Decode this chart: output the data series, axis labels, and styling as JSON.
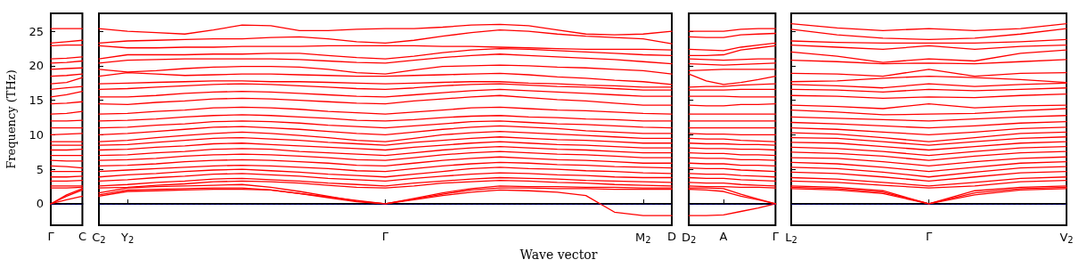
{
  "chart_data": [
    {
      "type": "line",
      "ylabel": "Frequency (THz)",
      "categories": [
        "Γ",
        null,
        "C"
      ],
      "ylim": [
        -3.1,
        27.6
      ],
      "yticks": [
        0,
        5,
        10,
        15,
        20,
        25
      ],
      "marker": "none",
      "grid": false,
      "ref_lines": [
        {
          "axis": "y",
          "value": 0,
          "color": "#0000ff",
          "line_style": "dotted"
        }
      ],
      "series": [
        {
          "color": "#ff0000",
          "values": [
            0,
            0.6,
            1.1
          ]
        },
        {
          "color": "#ff0000",
          "values": [
            0,
            1.1,
            2.0
          ]
        },
        {
          "color": "#ff0000",
          "values": [
            0,
            1.3,
            2.2
          ]
        },
        {
          "color": "#ff0000",
          "values": [
            2.3,
            2.3,
            2.4
          ]
        },
        {
          "color": "#ff0000",
          "values": [
            2.6,
            2.6,
            2.6
          ]
        },
        {
          "color": "#ff0000",
          "values": [
            3.3,
            3.3,
            3.4
          ]
        },
        {
          "color": "#ff0000",
          "values": [
            3.9,
            3.9,
            4.0
          ]
        },
        {
          "color": "#ff0000",
          "values": [
            4.7,
            4.7,
            4.7
          ]
        },
        {
          "color": "#ff0000",
          "values": [
            5.5,
            5.4,
            5.2
          ]
        },
        {
          "color": "#ff0000",
          "values": [
            6.3,
            6.2,
            6.2
          ]
        },
        {
          "color": "#ff0000",
          "values": [
            7.0,
            7.0,
            7.0
          ]
        },
        {
          "color": "#ff0000",
          "values": [
            7.8,
            7.8,
            7.9
          ]
        },
        {
          "color": "#ff0000",
          "values": [
            8.5,
            8.5,
            8.5
          ]
        },
        {
          "color": "#ff0000",
          "values": [
            9.0,
            9.0,
            9.0
          ]
        },
        {
          "color": "#ff0000",
          "values": [
            10.0,
            10.1,
            10.2
          ]
        },
        {
          "color": "#ff0000",
          "values": [
            11.0,
            11.0,
            11.0
          ]
        },
        {
          "color": "#ff0000",
          "values": [
            12.0,
            12.0,
            12.1
          ]
        },
        {
          "color": "#ff0000",
          "values": [
            13.0,
            13.1,
            13.4
          ]
        },
        {
          "color": "#ff0000",
          "values": [
            14.5,
            14.6,
            14.8
          ]
        },
        {
          "color": "#ff0000",
          "values": [
            15.5,
            15.8,
            16.3
          ]
        },
        {
          "color": "#ff0000",
          "values": [
            16.6,
            16.8,
            17.0
          ]
        },
        {
          "color": "#ff0000",
          "values": [
            17.4,
            17.6,
            18.3
          ]
        },
        {
          "color": "#ff0000",
          "values": [
            18.5,
            18.6,
            18.8
          ]
        },
        {
          "color": "#ff0000",
          "values": [
            19.5,
            19.6,
            19.7
          ]
        },
        {
          "color": "#ff0000",
          "values": [
            20.4,
            20.5,
            20.7
          ]
        },
        {
          "color": "#ff0000",
          "values": [
            21.0,
            21.1,
            21.3
          ]
        },
        {
          "color": "#ff0000",
          "values": [
            22.9,
            23.0,
            23.0
          ]
        },
        {
          "color": "#ff0000",
          "values": [
            23.3,
            23.5,
            23.7
          ]
        },
        {
          "color": "#ff0000",
          "values": [
            25.4,
            25.4,
            25.4
          ]
        }
      ]
    },
    {
      "type": "line",
      "xlabel": "Wave vector",
      "categories": [
        "C$_{2}$",
        "Y$_{2}$",
        null,
        null,
        null,
        null,
        null,
        null,
        null,
        null,
        "Γ",
        null,
        null,
        null,
        null,
        null,
        null,
        null,
        null,
        "M$_{2}$",
        "D"
      ],
      "ylim": [
        -3.1,
        27.6
      ],
      "yticks": [
        0,
        5,
        10,
        15,
        20,
        25
      ],
      "tick_labels": "x",
      "marker": "none",
      "grid": false,
      "ref_lines": [
        {
          "axis": "y",
          "value": 0,
          "color": "#0000ff",
          "line_style": "dotted"
        }
      ],
      "series": [
        {
          "color": "#ff0000",
          "values": [
            1.1,
            1.8,
            1.9,
            2.0,
            2.1,
            2.1,
            2.0,
            1.5,
            1.0,
            0.5,
            0,
            0.6,
            1.2,
            1.7,
            2.0,
            1.9,
            1.7,
            1.2,
            -1.2,
            -1.7,
            -1.7
          ]
        },
        {
          "color": "#ff0000",
          "values": [
            1.3,
            2.0,
            2.1,
            2.2,
            2.3,
            2.3,
            2.0,
            1.5,
            0.9,
            0.3,
            0,
            0.7,
            1.4,
            2.0,
            2.3,
            2.3,
            2.2,
            2.2,
            2.1,
            2.1,
            2.1
          ]
        },
        {
          "color": "#ff0000",
          "values": [
            1.6,
            2.3,
            2.5,
            2.6,
            2.7,
            2.8,
            2.4,
            1.8,
            1.1,
            0.4,
            0,
            0.8,
            1.6,
            2.2,
            2.6,
            2.5,
            2.5,
            2.4,
            2.4,
            2.3,
            2.3
          ]
        },
        {
          "color": "#ff0000",
          "values": [
            2.3,
            2.4,
            2.7,
            2.9,
            3.2,
            3.3,
            3.2,
            3.0,
            2.7,
            2.4,
            2.3,
            2.6,
            3.0,
            3.2,
            3.4,
            3.3,
            3.1,
            3.0,
            2.8,
            2.7,
            2.6
          ]
        },
        {
          "color": "#ff0000",
          "values": [
            2.6,
            2.8,
            3.1,
            3.3,
            3.6,
            3.7,
            3.5,
            3.3,
            3.0,
            2.8,
            2.6,
            3.0,
            3.3,
            3.6,
            3.8,
            3.7,
            3.6,
            3.4,
            3.3,
            3.2,
            3.1
          ]
        },
        {
          "color": "#ff0000",
          "values": [
            3.3,
            3.5,
            3.8,
            4.0,
            4.3,
            4.4,
            4.2,
            4.0,
            3.7,
            3.5,
            3.3,
            3.7,
            4.0,
            4.3,
            4.5,
            4.4,
            4.2,
            4.1,
            3.9,
            3.8,
            3.8
          ]
        },
        {
          "color": "#ff0000",
          "values": [
            3.9,
            4.2,
            4.4,
            4.7,
            4.9,
            5.0,
            4.8,
            4.6,
            4.3,
            4.1,
            3.9,
            4.3,
            4.7,
            5.1,
            5.3,
            5.1,
            5.0,
            4.8,
            4.7,
            4.5,
            4.4
          ]
        },
        {
          "color": "#ff0000",
          "values": [
            4.7,
            4.9,
            5.1,
            5.3,
            5.5,
            5.6,
            5.5,
            5.3,
            5.1,
            4.8,
            4.7,
            5.1,
            5.5,
            5.8,
            6.0,
            5.9,
            5.7,
            5.6,
            5.4,
            5.3,
            5.2
          ]
        },
        {
          "color": "#ff0000",
          "values": [
            5.5,
            5.6,
            5.8,
            6.1,
            6.3,
            6.4,
            6.3,
            6.1,
            5.9,
            5.6,
            5.5,
            5.9,
            6.3,
            6.6,
            6.8,
            6.6,
            6.4,
            6.3,
            6.1,
            5.9,
            5.9
          ]
        },
        {
          "color": "#ff0000",
          "values": [
            6.3,
            6.4,
            6.6,
            6.9,
            7.1,
            7.2,
            7.1,
            6.9,
            6.7,
            6.4,
            6.3,
            6.7,
            7.1,
            7.4,
            7.6,
            7.4,
            7.2,
            7.1,
            6.9,
            6.7,
            6.7
          ]
        },
        {
          "color": "#ff0000",
          "values": [
            7.0,
            7.1,
            7.4,
            7.6,
            7.9,
            8.0,
            7.9,
            7.6,
            7.4,
            7.2,
            7.0,
            7.4,
            7.8,
            8.1,
            8.3,
            8.1,
            7.9,
            7.8,
            7.6,
            7.4,
            7.4
          ]
        },
        {
          "color": "#ff0000",
          "values": [
            7.8,
            7.9,
            8.2,
            8.4,
            8.7,
            8.8,
            8.6,
            8.4,
            8.2,
            8.0,
            7.8,
            8.2,
            8.5,
            8.8,
            9.0,
            8.8,
            8.6,
            8.5,
            8.3,
            8.1,
            8.1
          ]
        },
        {
          "color": "#ff0000",
          "values": [
            8.5,
            8.6,
            8.9,
            9.2,
            9.5,
            9.6,
            9.4,
            9.2,
            8.9,
            8.7,
            8.5,
            8.9,
            9.2,
            9.5,
            9.7,
            9.5,
            9.3,
            9.2,
            9.0,
            8.8,
            8.8
          ]
        },
        {
          "color": "#ff0000",
          "values": [
            9.0,
            9.2,
            9.6,
            9.9,
            10.2,
            10.4,
            10.2,
            9.9,
            9.6,
            9.2,
            9.0,
            9.5,
            10.0,
            10.3,
            10.5,
            10.3,
            10.1,
            9.9,
            9.7,
            9.5,
            9.5
          ]
        },
        {
          "color": "#ff0000",
          "values": [
            10.0,
            10.2,
            10.5,
            10.8,
            11.1,
            11.2,
            11.0,
            10.8,
            10.5,
            10.2,
            10.0,
            10.4,
            10.8,
            11.1,
            11.3,
            11.1,
            10.9,
            10.6,
            10.4,
            10.2,
            10.2
          ]
        },
        {
          "color": "#ff0000",
          "values": [
            11.0,
            11.1,
            11.4,
            11.6,
            11.9,
            12.0,
            11.9,
            11.7,
            11.4,
            11.2,
            11.0,
            11.3,
            11.6,
            11.9,
            12.0,
            11.8,
            11.6,
            11.5,
            11.3,
            11.1,
            11.0
          ]
        },
        {
          "color": "#ff0000",
          "values": [
            12.0,
            12.1,
            12.3,
            12.6,
            12.8,
            12.9,
            12.8,
            12.6,
            12.4,
            12.1,
            12.0,
            12.2,
            12.5,
            12.7,
            12.8,
            12.6,
            12.5,
            12.3,
            12.2,
            12.0,
            12.0
          ]
        },
        {
          "color": "#ff0000",
          "values": [
            13.0,
            13.1,
            13.4,
            13.6,
            13.9,
            14.0,
            13.9,
            13.7,
            13.4,
            13.2,
            13.0,
            13.3,
            13.6,
            13.9,
            14.0,
            13.8,
            13.6,
            13.5,
            13.3,
            13.1,
            13.0
          ]
        },
        {
          "color": "#ff0000",
          "values": [
            14.5,
            14.4,
            14.7,
            14.9,
            15.2,
            15.3,
            15.2,
            15.0,
            14.8,
            14.6,
            14.5,
            14.9,
            15.2,
            15.5,
            15.7,
            15.4,
            15.1,
            14.9,
            14.6,
            14.3,
            14.3
          ]
        },
        {
          "color": "#ff0000",
          "values": [
            15.5,
            15.5,
            15.7,
            16.0,
            16.2,
            16.3,
            16.2,
            16.0,
            15.8,
            15.6,
            15.5,
            15.8,
            16.1,
            16.4,
            16.6,
            16.4,
            16.2,
            16.0,
            15.8,
            15.6,
            15.6
          ]
        },
        {
          "color": "#ff0000",
          "values": [
            16.6,
            16.7,
            16.9,
            17.1,
            17.3,
            17.4,
            17.3,
            17.1,
            16.9,
            16.7,
            16.6,
            16.8,
            17.1,
            17.3,
            17.4,
            17.2,
            17.0,
            16.9,
            16.7,
            16.5,
            16.5
          ]
        },
        {
          "color": "#ff0000",
          "values": [
            17.4,
            17.5,
            17.6,
            17.7,
            17.8,
            17.8,
            17.7,
            17.7,
            17.6,
            17.5,
            17.4,
            17.5,
            17.6,
            17.7,
            17.7,
            17.5,
            17.4,
            17.2,
            17.1,
            16.9,
            16.9
          ]
        },
        {
          "color": "#ff0000",
          "values": [
            18.5,
            19.0,
            18.8,
            18.6,
            18.7,
            18.8,
            18.8,
            18.7,
            18.6,
            18.5,
            18.5,
            18.6,
            18.7,
            18.8,
            18.9,
            18.7,
            18.4,
            18.2,
            17.9,
            17.7,
            17.3
          ]
        },
        {
          "color": "#ff0000",
          "values": [
            19.5,
            19.1,
            19.3,
            19.6,
            19.8,
            19.9,
            19.9,
            19.8,
            19.5,
            19.0,
            18.8,
            19.4,
            19.9,
            20.0,
            20.1,
            20.0,
            19.8,
            19.7,
            19.5,
            19.3,
            18.8
          ]
        },
        {
          "color": "#ff0000",
          "values": [
            20.4,
            20.8,
            20.9,
            21.0,
            21.0,
            21.0,
            21.0,
            20.9,
            20.7,
            20.5,
            20.4,
            20.8,
            21.2,
            21.5,
            21.7,
            21.5,
            21.3,
            21.1,
            20.9,
            20.6,
            20.3
          ]
        },
        {
          "color": "#ff0000",
          "values": [
            21.0,
            21.6,
            21.6,
            21.6,
            21.7,
            21.7,
            21.8,
            21.8,
            21.5,
            21.2,
            21.0,
            21.4,
            21.9,
            22.3,
            22.5,
            22.4,
            22.2,
            22.0,
            21.8,
            21.6,
            21.5
          ]
        },
        {
          "color": "#ff0000",
          "values": [
            22.9,
            22.6,
            22.6,
            22.7,
            22.7,
            22.8,
            22.8,
            22.8,
            22.9,
            22.9,
            22.9,
            22.9,
            22.8,
            22.8,
            22.7,
            22.6,
            22.5,
            22.4,
            22.4,
            22.4,
            22.3
          ]
        },
        {
          "color": "#ff0000",
          "values": [
            23.3,
            23.6,
            23.7,
            23.8,
            23.9,
            23.9,
            24.1,
            24.2,
            23.9,
            23.5,
            23.3,
            23.7,
            24.3,
            24.8,
            25.2,
            25.0,
            24.6,
            24.3,
            24.1,
            23.9,
            23.2
          ]
        },
        {
          "color": "#ff0000",
          "values": [
            25.4,
            25.0,
            24.8,
            24.6,
            25.2,
            25.9,
            25.8,
            25.1,
            25.1,
            25.3,
            25.4,
            25.4,
            25.6,
            25.9,
            26.0,
            25.8,
            25.2,
            24.6,
            24.5,
            24.6,
            25.0
          ]
        }
      ]
    },
    {
      "type": "line",
      "categories": [
        "D$_{2}$",
        null,
        "A",
        null,
        null,
        "Γ"
      ],
      "ylim": [
        -3.1,
        27.6
      ],
      "yticks": [
        0,
        5,
        10,
        15,
        20,
        25
      ],
      "tick_labels": "x",
      "marker": "none",
      "grid": false,
      "ref_lines": [
        {
          "axis": "y",
          "value": 0,
          "color": "#0000ff",
          "line_style": "dotted"
        }
      ],
      "series": [
        {
          "color": "#ff0000",
          "values": [
            -1.7,
            -1.7,
            -1.6,
            -1.1,
            -0.6,
            0
          ]
        },
        {
          "color": "#ff0000",
          "values": [
            2.1,
            2.0,
            1.8,
            1.1,
            0.6,
            0
          ]
        },
        {
          "color": "#ff0000",
          "values": [
            2.3,
            2.3,
            2.2,
            1.4,
            0.7,
            0
          ]
        },
        {
          "color": "#ff0000",
          "values": [
            2.6,
            2.5,
            2.5,
            2.4,
            2.4,
            2.3
          ]
        },
        {
          "color": "#ff0000",
          "values": [
            3.1,
            3.0,
            3.0,
            2.8,
            2.7,
            2.6
          ]
        },
        {
          "color": "#ff0000",
          "values": [
            3.8,
            3.7,
            3.7,
            3.5,
            3.4,
            3.3
          ]
        },
        {
          "color": "#ff0000",
          "values": [
            4.4,
            4.3,
            4.3,
            4.1,
            4.0,
            3.9
          ]
        },
        {
          "color": "#ff0000",
          "values": [
            5.2,
            5.1,
            5.1,
            4.9,
            4.8,
            4.7
          ]
        },
        {
          "color": "#ff0000",
          "values": [
            5.9,
            5.8,
            5.8,
            5.6,
            5.6,
            5.5
          ]
        },
        {
          "color": "#ff0000",
          "values": [
            6.7,
            6.6,
            6.6,
            6.4,
            6.4,
            6.3
          ]
        },
        {
          "color": "#ff0000",
          "values": [
            7.4,
            7.3,
            7.3,
            7.1,
            7.1,
            7.0
          ]
        },
        {
          "color": "#ff0000",
          "values": [
            8.1,
            8.0,
            8.0,
            7.9,
            7.9,
            7.8
          ]
        },
        {
          "color": "#ff0000",
          "values": [
            8.8,
            8.7,
            8.7,
            8.6,
            8.6,
            8.5
          ]
        },
        {
          "color": "#ff0000",
          "values": [
            9.5,
            9.4,
            9.4,
            9.2,
            9.1,
            9.0
          ]
        },
        {
          "color": "#ff0000",
          "values": [
            10.2,
            10.1,
            10.1,
            10.0,
            10.0,
            10.0
          ]
        },
        {
          "color": "#ff0000",
          "values": [
            11.0,
            11.0,
            11.0,
            11.0,
            11.0,
            11.0
          ]
        },
        {
          "color": "#ff0000",
          "values": [
            12.0,
            12.0,
            12.0,
            12.0,
            12.0,
            12.0
          ]
        },
        {
          "color": "#ff0000",
          "values": [
            13.0,
            13.0,
            13.0,
            13.0,
            13.0,
            13.0
          ]
        },
        {
          "color": "#ff0000",
          "values": [
            14.3,
            14.2,
            14.2,
            14.4,
            14.4,
            14.5
          ]
        },
        {
          "color": "#ff0000",
          "values": [
            15.6,
            15.6,
            15.6,
            15.5,
            15.5,
            15.5
          ]
        },
        {
          "color": "#ff0000",
          "values": [
            16.5,
            16.5,
            16.5,
            16.6,
            16.6,
            16.6
          ]
        },
        {
          "color": "#ff0000",
          "values": [
            16.9,
            17.0,
            17.0,
            17.2,
            17.3,
            17.4
          ]
        },
        {
          "color": "#ff0000",
          "values": [
            18.8,
            17.8,
            17.3,
            17.6,
            18.0,
            18.5
          ]
        },
        {
          "color": "#ff0000",
          "values": [
            19.3,
            19.4,
            19.5,
            19.5,
            19.5,
            19.5
          ]
        },
        {
          "color": "#ff0000",
          "values": [
            20.3,
            20.2,
            20.1,
            20.2,
            20.3,
            20.4
          ]
        },
        {
          "color": "#ff0000",
          "values": [
            21.0,
            20.9,
            20.8,
            20.9,
            21.0,
            21.0
          ]
        },
        {
          "color": "#ff0000",
          "values": [
            21.5,
            21.5,
            21.6,
            22.3,
            22.6,
            22.9
          ]
        },
        {
          "color": "#ff0000",
          "values": [
            22.4,
            22.3,
            22.2,
            22.7,
            23.0,
            23.3
          ]
        },
        {
          "color": "#ff0000",
          "values": [
            24.2,
            24.1,
            24.1,
            24.5,
            24.6,
            24.7
          ]
        },
        {
          "color": "#ff0000",
          "values": [
            25.0,
            25.0,
            25.0,
            25.3,
            25.4,
            25.4
          ]
        }
      ]
    },
    {
      "type": "line",
      "categories": [
        "L$_{2}$",
        null,
        null,
        "Γ",
        null,
        null,
        "V$_{2}$"
      ],
      "ylim": [
        -3.1,
        27.6
      ],
      "yticks": [
        0,
        5,
        10,
        15,
        20,
        25
      ],
      "tick_labels": "x",
      "marker": "none",
      "grid": false,
      "ref_lines": [
        {
          "axis": "y",
          "value": 0,
          "color": "#0000ff",
          "line_style": "dotted"
        }
      ],
      "series": [
        {
          "color": "#ff0000",
          "values": [
            2.2,
            2.0,
            1.5,
            0,
            1.3,
            2.0,
            2.2
          ]
        },
        {
          "color": "#ff0000",
          "values": [
            2.4,
            2.2,
            1.7,
            0,
            1.6,
            2.2,
            2.4
          ]
        },
        {
          "color": "#ff0000",
          "values": [
            2.6,
            2.4,
            1.9,
            0,
            1.9,
            2.4,
            2.6
          ]
        },
        {
          "color": "#ff0000",
          "values": [
            3.3,
            3.1,
            2.7,
            2.3,
            2.6,
            3.2,
            3.4
          ]
        },
        {
          "color": "#ff0000",
          "values": [
            3.8,
            3.6,
            3.1,
            2.6,
            3.1,
            3.7,
            3.9
          ]
        },
        {
          "color": "#ff0000",
          "values": [
            4.6,
            4.4,
            3.9,
            3.3,
            3.9,
            4.5,
            4.7
          ]
        },
        {
          "color": "#ff0000",
          "values": [
            5.3,
            5.1,
            4.6,
            3.9,
            4.6,
            5.2,
            5.4
          ]
        },
        {
          "color": "#ff0000",
          "values": [
            6.0,
            5.8,
            5.3,
            4.7,
            5.3,
            5.9,
            6.1
          ]
        },
        {
          "color": "#ff0000",
          "values": [
            6.7,
            6.6,
            6.1,
            5.5,
            6.1,
            6.6,
            6.8
          ]
        },
        {
          "color": "#ff0000",
          "values": [
            7.5,
            7.3,
            6.9,
            6.3,
            6.9,
            7.4,
            7.6
          ]
        },
        {
          "color": "#ff0000",
          "values": [
            8.2,
            8.0,
            7.6,
            7.0,
            7.6,
            8.1,
            8.3
          ]
        },
        {
          "color": "#ff0000",
          "values": [
            8.9,
            8.8,
            8.3,
            7.8,
            8.3,
            8.8,
            9.0
          ]
        },
        {
          "color": "#ff0000",
          "values": [
            9.6,
            9.5,
            9.0,
            8.5,
            9.0,
            9.5,
            9.7
          ]
        },
        {
          "color": "#ff0000",
          "values": [
            10.3,
            10.1,
            9.6,
            9.0,
            9.6,
            10.2,
            10.4
          ]
        },
        {
          "color": "#ff0000",
          "values": [
            11.0,
            10.8,
            10.4,
            10.0,
            10.4,
            10.9,
            11.1
          ]
        },
        {
          "color": "#ff0000",
          "values": [
            11.8,
            11.6,
            11.3,
            11.0,
            11.3,
            11.7,
            11.9
          ]
        },
        {
          "color": "#ff0000",
          "values": [
            12.6,
            12.4,
            12.2,
            12.0,
            12.3,
            12.6,
            12.8
          ]
        },
        {
          "color": "#ff0000",
          "values": [
            13.6,
            13.3,
            12.9,
            13.0,
            13.1,
            13.5,
            13.8
          ]
        },
        {
          "color": "#ff0000",
          "values": [
            14.3,
            14.1,
            13.8,
            14.5,
            13.9,
            14.2,
            14.3
          ]
        },
        {
          "color": "#ff0000",
          "values": [
            15.7,
            15.6,
            15.3,
            15.5,
            15.4,
            15.7,
            15.9
          ]
        },
        {
          "color": "#ff0000",
          "values": [
            16.6,
            16.5,
            16.2,
            16.6,
            16.4,
            16.6,
            16.8
          ]
        },
        {
          "color": "#ff0000",
          "values": [
            17.3,
            17.1,
            16.8,
            17.4,
            17.0,
            17.3,
            17.5
          ]
        },
        {
          "color": "#ff0000",
          "values": [
            17.7,
            17.8,
            18.2,
            18.5,
            18.3,
            18.0,
            17.6
          ]
        },
        {
          "color": "#ff0000",
          "values": [
            18.9,
            18.8,
            18.5,
            19.5,
            18.5,
            18.9,
            19.0
          ]
        },
        {
          "color": "#ff0000",
          "values": [
            20.8,
            20.6,
            20.3,
            20.4,
            20.3,
            20.6,
            20.9
          ]
        },
        {
          "color": "#ff0000",
          "values": [
            22.0,
            21.4,
            20.5,
            21.0,
            20.7,
            21.8,
            22.3
          ]
        },
        {
          "color": "#ff0000",
          "values": [
            23.0,
            22.7,
            22.4,
            22.9,
            22.4,
            22.8,
            23.0
          ]
        },
        {
          "color": "#ff0000",
          "values": [
            23.6,
            23.4,
            23.3,
            23.3,
            23.3,
            23.5,
            23.8
          ]
        },
        {
          "color": "#ff0000",
          "values": [
            25.3,
            24.5,
            24.0,
            23.8,
            24.0,
            24.6,
            25.4
          ]
        },
        {
          "color": "#ff0000",
          "values": [
            26.1,
            25.5,
            25.1,
            25.4,
            25.1,
            25.4,
            26.1
          ]
        }
      ]
    }
  ]
}
